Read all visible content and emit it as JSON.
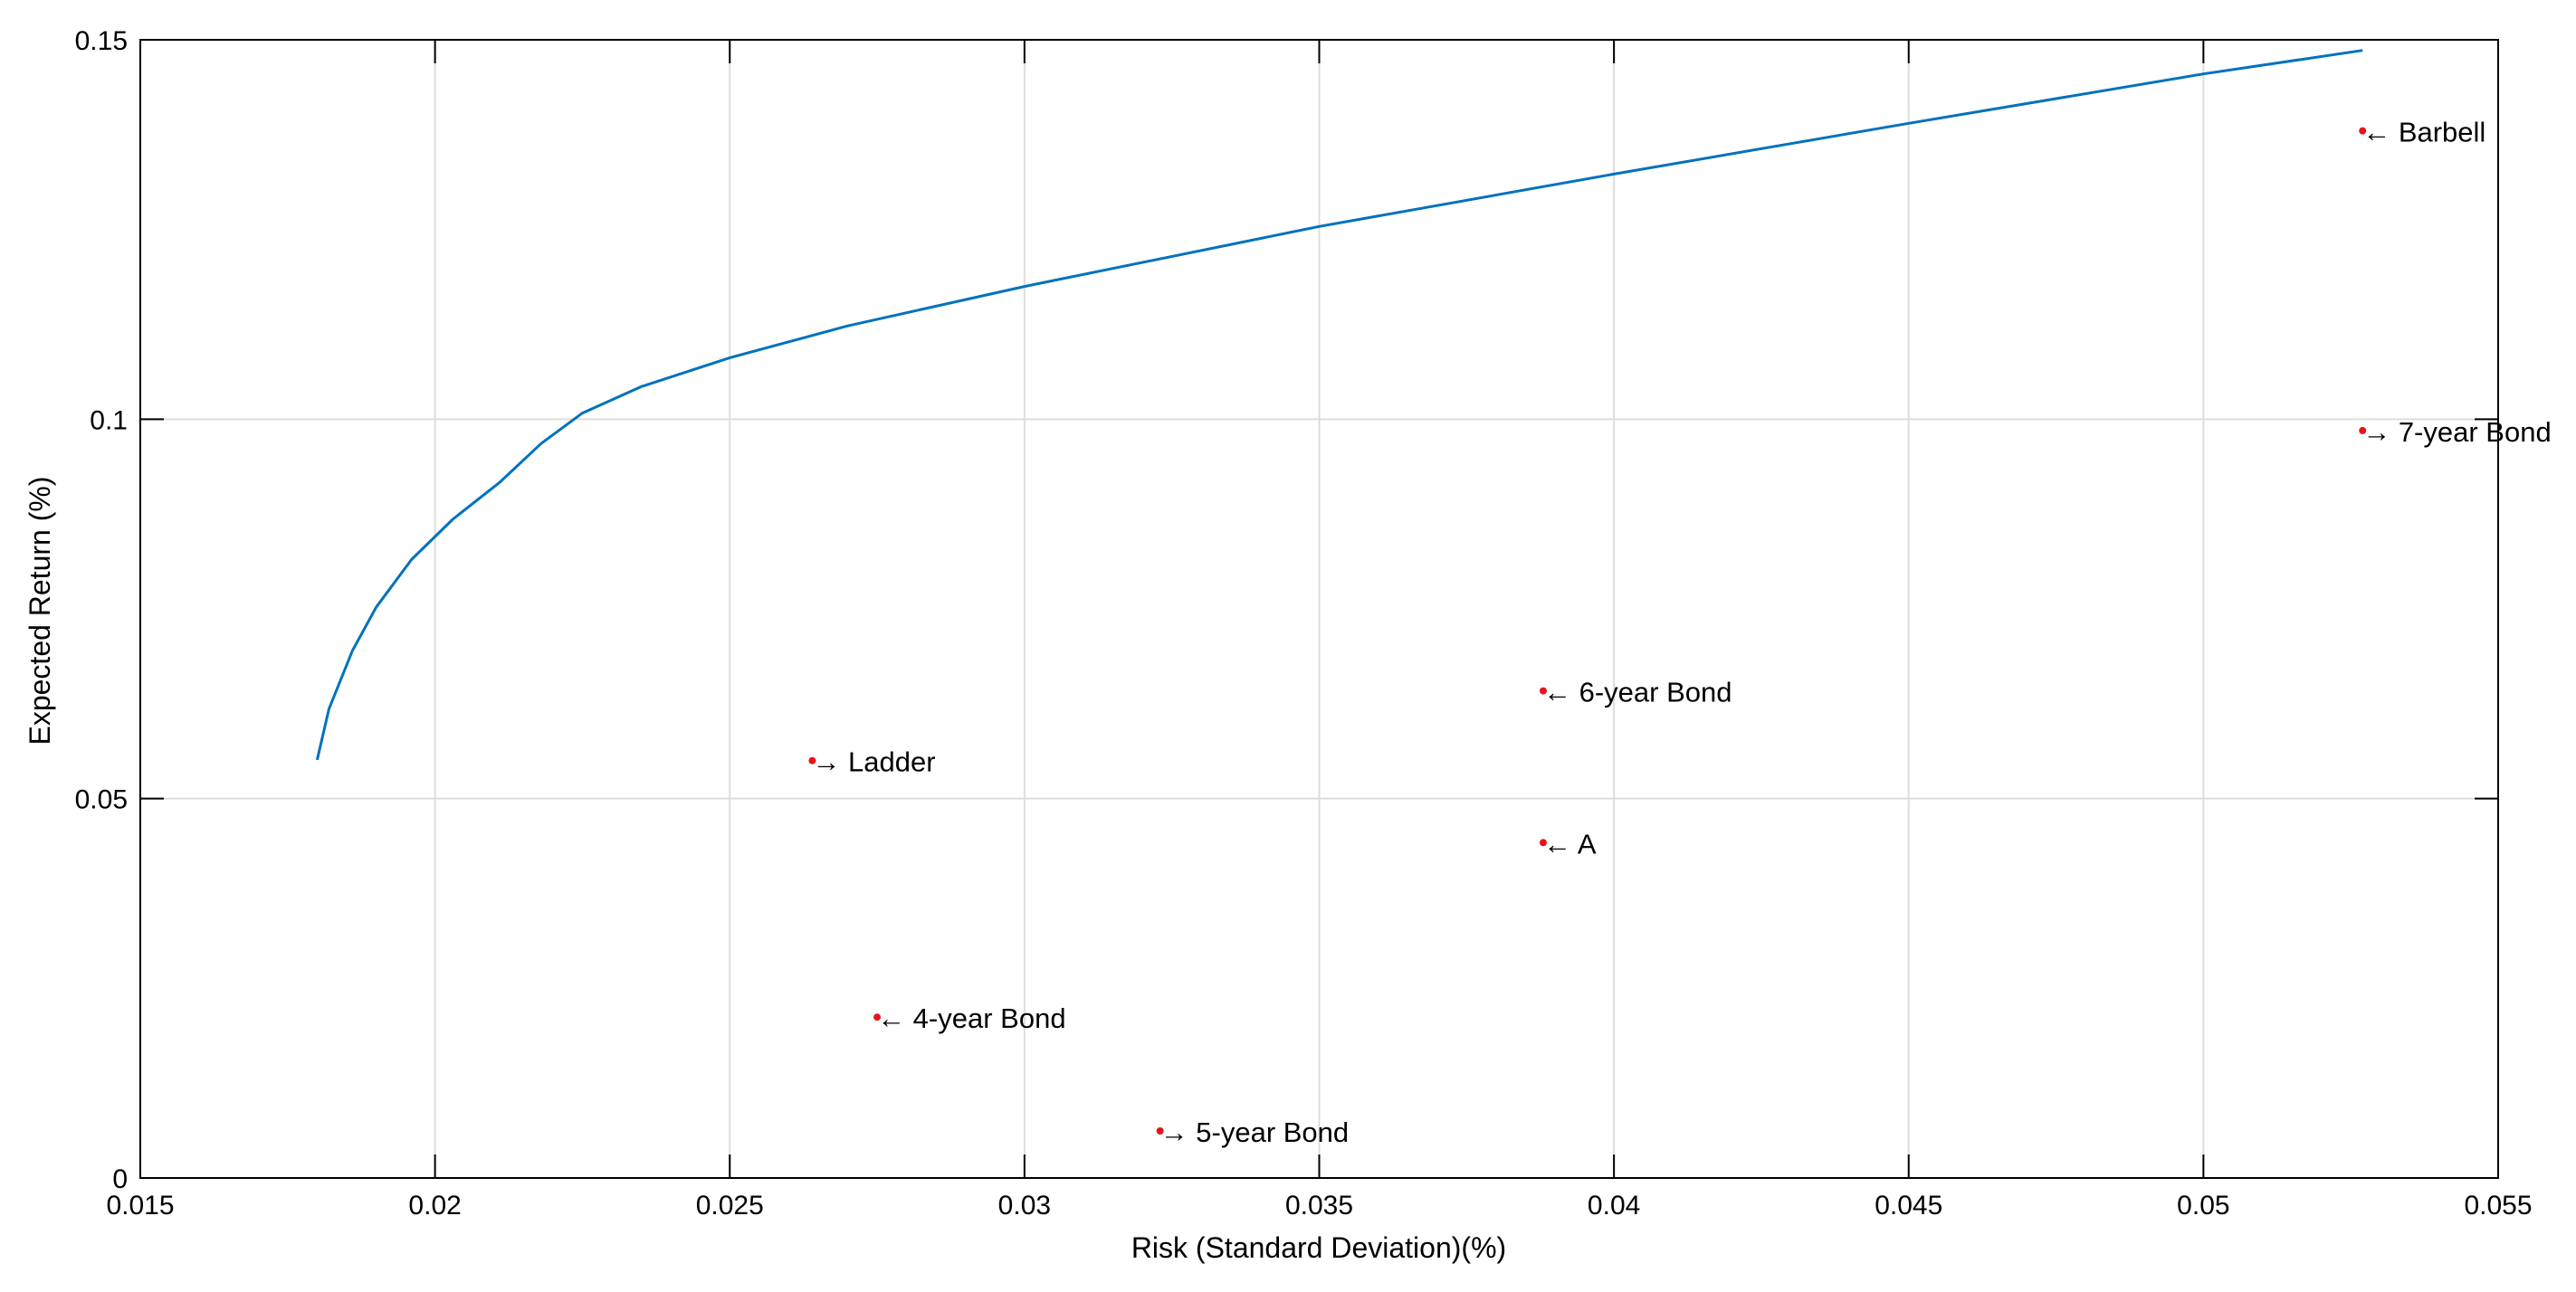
{
  "chart_data": {
    "type": "line",
    "title": "",
    "xlabel": "Risk (Standard Deviation)(%)",
    "ylabel": "Expected Return (%)",
    "xlim": [
      0.015,
      0.055
    ],
    "ylim": [
      0,
      0.15
    ],
    "grid": true,
    "x_ticks": [
      0.015,
      0.02,
      0.025,
      0.03,
      0.035,
      0.04,
      0.045,
      0.05,
      0.055
    ],
    "x_tick_labels": [
      "0.015",
      "0.02",
      "0.025",
      "0.03",
      "0.035",
      "0.04",
      "0.045",
      "0.05",
      "0.055"
    ],
    "y_ticks": [
      0,
      0.05,
      0.1,
      0.15
    ],
    "y_tick_labels": [
      "0",
      "0.05",
      "0.1",
      "0.15"
    ],
    "colors": {
      "frontier": "#0072bd",
      "points": "#e8141c",
      "grid": "#dddddd",
      "axes": "#000000"
    },
    "frontier": {
      "x": [
        0.018,
        0.0182,
        0.0186,
        0.019,
        0.0196,
        0.0203,
        0.0211,
        0.0218,
        0.0225,
        0.0235,
        0.025,
        0.027,
        0.03,
        0.035,
        0.04,
        0.045,
        0.05,
        0.0527
      ],
      "y": [
        0.0551,
        0.0618,
        0.0695,
        0.0752,
        0.0815,
        0.0868,
        0.0917,
        0.0968,
        0.1008,
        0.1043,
        0.1081,
        0.1123,
        0.1175,
        0.1254,
        0.1323,
        0.139,
        0.1455,
        0.1486
      ]
    },
    "points": [
      {
        "label": "Barbell",
        "arrow": "←",
        "x": 0.0527,
        "y": 0.138
      },
      {
        "label": "7-year Bond",
        "arrow": "→",
        "x": 0.0527,
        "y": 0.0985
      },
      {
        "label": "6-year Bond",
        "arrow": "←",
        "x": 0.0388,
        "y": 0.0642
      },
      {
        "label": "Ladder",
        "arrow": "→",
        "x": 0.0264,
        "y": 0.055
      },
      {
        "label": "A",
        "arrow": "←",
        "x": 0.0388,
        "y": 0.0442
      },
      {
        "label": "4-year Bond",
        "arrow": "←",
        "x": 0.0275,
        "y": 0.0212
      },
      {
        "label": "5-year Bond",
        "arrow": "→",
        "x": 0.0323,
        "y": 0.0062
      }
    ]
  }
}
